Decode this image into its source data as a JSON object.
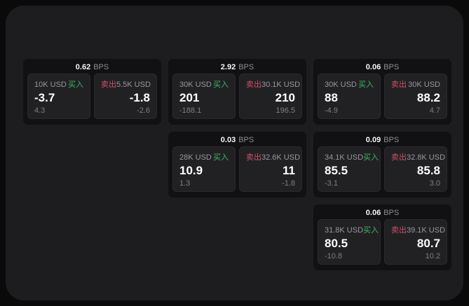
{
  "window": {
    "outer_background": "#0a0a0b",
    "surface_background": "#1d1d1f"
  },
  "colors": {
    "buy_green": "#3cb567",
    "sell_red": "#d14f6a",
    "card_background": "#111113",
    "panel_background": "#212124",
    "label_gray": "#98989d",
    "sub_gray": "#7f7f84",
    "value_white": "#ffffff"
  },
  "unit_label": "BPS",
  "buy_label": "买入",
  "sell_label": "卖出",
  "cards": [
    {
      "col": 1,
      "row": 1,
      "bps": "0.62",
      "buy": {
        "amount": "10K USD",
        "price": "-3.7",
        "delta": "4.3"
      },
      "sell": {
        "amount": "5.5K USD",
        "price": "-1.8",
        "delta": "-2.6"
      }
    },
    {
      "col": 2,
      "row": 1,
      "bps": "2.92",
      "buy": {
        "amount": "30K USD",
        "price": "201",
        "delta": "-188.1"
      },
      "sell": {
        "amount": "30.1K USD",
        "price": "210",
        "delta": "196.5"
      }
    },
    {
      "col": 3,
      "row": 1,
      "bps": "0.06",
      "buy": {
        "amount": "30K USD",
        "price": "88",
        "delta": "-4.9"
      },
      "sell": {
        "amount": "30K USD",
        "price": "88.2",
        "delta": "4.7"
      }
    },
    {
      "col": 2,
      "row": 2,
      "bps": "0.03",
      "buy": {
        "amount": "28K USD",
        "price": "10.9",
        "delta": "1.3"
      },
      "sell": {
        "amount": "32.6K USD",
        "price": "11",
        "delta": "-1.8"
      }
    },
    {
      "col": 3,
      "row": 2,
      "bps": "0.09",
      "buy": {
        "amount": "34.1K USD",
        "price": "85.5",
        "delta": "-3.1"
      },
      "sell": {
        "amount": "32.8K USD",
        "price": "85.8",
        "delta": "3.0"
      }
    },
    {
      "col": 3,
      "row": 3,
      "bps": "0.06",
      "buy": {
        "amount": "31.8K USD",
        "price": "80.5",
        "delta": "-10.8"
      },
      "sell": {
        "amount": "39.1K USD",
        "price": "80.7",
        "delta": "10.2"
      }
    }
  ]
}
